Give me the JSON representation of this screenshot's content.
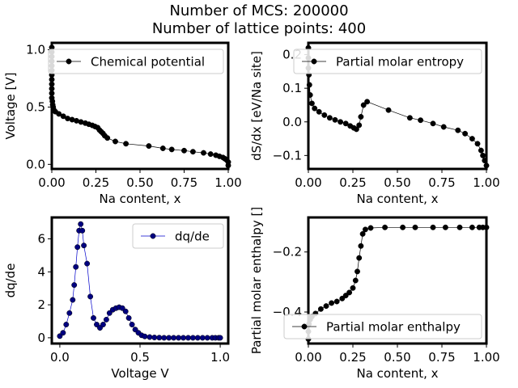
{
  "figure": {
    "title_line1": "Number of MCS: 200000",
    "title_line2": "Number of lattice points: 400"
  },
  "chart_data": [
    {
      "type": "line",
      "xlabel": "Na content, x",
      "ylabel": "Voltage [V]",
      "xlim": [
        0,
        1
      ],
      "ylim": [
        -0.04,
        1.06
      ],
      "xticks": [
        "0.00",
        "0.25",
        "0.50",
        "0.75",
        "1.00"
      ],
      "yticks": [
        "0.0",
        "0.5",
        "1.0"
      ],
      "xtick_values": [
        0,
        0.25,
        0.5,
        0.75,
        1
      ],
      "ytick_values": [
        0,
        0.5,
        1.0
      ],
      "legend": {
        "label": "Chemical potential",
        "position": "upper-right"
      },
      "series": [
        {
          "color": "#000000",
          "marker_fill": "#000000",
          "x": [
            0.0,
            0.0,
            0.0,
            0.0,
            0.0,
            0.0,
            0.0,
            0.0,
            0.0,
            0.0,
            0.0,
            0.0,
            0.003,
            0.005,
            0.008,
            0.01,
            0.02,
            0.04,
            0.065,
            0.09,
            0.115,
            0.14,
            0.165,
            0.19,
            0.21,
            0.23,
            0.245,
            0.26,
            0.27,
            0.28,
            0.29,
            0.3,
            0.315,
            0.36,
            0.42,
            0.55,
            0.63,
            0.68,
            0.75,
            0.8,
            0.86,
            0.9,
            0.93,
            0.95,
            0.97,
            0.98,
            0.99,
            1.0,
            1.0
          ],
          "y": [
            1.02,
            0.98,
            0.94,
            0.9,
            0.86,
            0.82,
            0.78,
            0.74,
            0.7,
            0.66,
            0.62,
            0.58,
            0.55,
            0.52,
            0.5,
            0.48,
            0.46,
            0.44,
            0.42,
            0.4,
            0.39,
            0.38,
            0.37,
            0.36,
            0.35,
            0.34,
            0.33,
            0.32,
            0.3,
            0.285,
            0.27,
            0.25,
            0.23,
            0.2,
            0.18,
            0.16,
            0.14,
            0.13,
            0.12,
            0.11,
            0.1,
            0.09,
            0.08,
            0.07,
            0.06,
            0.05,
            0.04,
            0.02,
            -0.01
          ]
        }
      ]
    },
    {
      "type": "line",
      "xlabel": "Na content, x",
      "ylabel": "dS/dx [eV/Na site]",
      "xlim": [
        0,
        1
      ],
      "ylim": [
        -0.14,
        0.235
      ],
      "xticks": [
        "0.00",
        "0.25",
        "0.50",
        "0.75",
        "1.00"
      ],
      "yticks": [
        "−0.1",
        "0.0",
        "0.1",
        "0.2"
      ],
      "xtick_values": [
        0,
        0.25,
        0.5,
        0.75,
        1
      ],
      "ytick_values": [
        -0.1,
        0.0,
        0.1,
        0.2
      ],
      "legend": {
        "label": "Partial molar entropy",
        "position": "upper-right"
      },
      "series": [
        {
          "color": "#000000",
          "marker_fill": "#000000",
          "x": [
            0.0,
            0.0,
            0.0,
            0.003,
            0.006,
            0.01,
            0.02,
            0.035,
            0.06,
            0.09,
            0.12,
            0.15,
            0.18,
            0.21,
            0.235,
            0.255,
            0.27,
            0.285,
            0.295,
            0.31,
            0.33,
            0.45,
            0.57,
            0.63,
            0.7,
            0.76,
            0.84,
            0.88,
            0.92,
            0.95,
            0.97,
            0.98,
            0.99,
            1.0
          ],
          "y": [
            0.22,
            0.19,
            0.16,
            0.14,
            0.11,
            0.08,
            0.055,
            0.04,
            0.03,
            0.02,
            0.012,
            0.006,
            0.0,
            -0.005,
            -0.012,
            -0.018,
            -0.022,
            -0.01,
            0.015,
            0.05,
            0.06,
            0.035,
            0.012,
            0.005,
            -0.005,
            -0.015,
            -0.025,
            -0.035,
            -0.05,
            -0.065,
            -0.085,
            -0.1,
            -0.115,
            -0.13
          ]
        }
      ]
    },
    {
      "type": "line",
      "xlabel": "Voltage V",
      "ylabel": "dq/de",
      "xlim": [
        -0.05,
        1.05
      ],
      "ylim": [
        -0.35,
        7.3
      ],
      "xticks": [
        "0.0",
        "0.5",
        "1.0"
      ],
      "yticks": [
        "0",
        "2",
        "4",
        "6"
      ],
      "xtick_values": [
        0,
        0.5,
        1.0
      ],
      "ytick_values": [
        0,
        2,
        4,
        6
      ],
      "legend": {
        "label": "dq/de",
        "position": "upper-right"
      },
      "series": [
        {
          "color": "#0000cc",
          "marker_fill": "#000080",
          "x": [
            0.0,
            0.02,
            0.04,
            0.06,
            0.08,
            0.09,
            0.1,
            0.11,
            0.12,
            0.13,
            0.14,
            0.15,
            0.17,
            0.19,
            0.21,
            0.23,
            0.25,
            0.27,
            0.29,
            0.31,
            0.33,
            0.35,
            0.37,
            0.39,
            0.41,
            0.43,
            0.45,
            0.47,
            0.49,
            0.51,
            0.53,
            0.56,
            0.59,
            0.62,
            0.65,
            0.68,
            0.71,
            0.74,
            0.77,
            0.8,
            0.83,
            0.86,
            0.89,
            0.92,
            0.95,
            0.97,
            0.99,
            1.0
          ],
          "y": [
            0.1,
            0.3,
            0.8,
            1.5,
            2.3,
            3.2,
            4.3,
            5.5,
            6.5,
            6.9,
            6.5,
            5.6,
            4.5,
            2.5,
            1.2,
            0.8,
            0.6,
            0.8,
            1.1,
            1.5,
            1.7,
            1.8,
            1.85,
            1.8,
            1.6,
            1.2,
            0.8,
            0.5,
            0.3,
            0.15,
            0.08,
            0.04,
            0.02,
            0.01,
            0.0,
            0.0,
            0.0,
            0.0,
            0.0,
            0.0,
            0.0,
            0.0,
            0.0,
            0.0,
            0.0,
            0.0,
            0.0,
            0.0
          ]
        }
      ]
    },
    {
      "type": "line",
      "xlabel": "Na content, x",
      "ylabel": "Partial molar enthalpy []",
      "xlim": [
        0,
        1
      ],
      "ylim": [
        -0.505,
        -0.085
      ],
      "xticks": [
        "0.00",
        "0.25",
        "0.50",
        "0.75",
        "1.00"
      ],
      "yticks": [
        "−0.4",
        "−0.2"
      ],
      "xtick_values": [
        0,
        0.25,
        0.5,
        0.75,
        1
      ],
      "ytick_values": [
        -0.4,
        -0.2
      ],
      "legend": {
        "label": "Partial molar enthalpy",
        "position": "lower-right"
      },
      "series": [
        {
          "color": "#000000",
          "marker_fill": "#000000",
          "x": [
            0.0,
            0.0,
            0.003,
            0.01,
            0.02,
            0.04,
            0.07,
            0.1,
            0.13,
            0.16,
            0.19,
            0.21,
            0.23,
            0.25,
            0.265,
            0.275,
            0.285,
            0.295,
            0.305,
            0.32,
            0.35,
            0.43,
            0.53,
            0.6,
            0.7,
            0.77,
            0.85,
            0.92,
            0.96,
            0.98,
            1.0
          ],
          "y": [
            -0.49,
            -0.465,
            -0.44,
            -0.425,
            -0.415,
            -0.405,
            -0.39,
            -0.38,
            -0.37,
            -0.365,
            -0.355,
            -0.345,
            -0.335,
            -0.32,
            -0.295,
            -0.265,
            -0.22,
            -0.18,
            -0.14,
            -0.125,
            -0.12,
            -0.118,
            -0.118,
            -0.118,
            -0.118,
            -0.118,
            -0.118,
            -0.118,
            -0.118,
            -0.118,
            -0.118
          ]
        }
      ]
    }
  ]
}
